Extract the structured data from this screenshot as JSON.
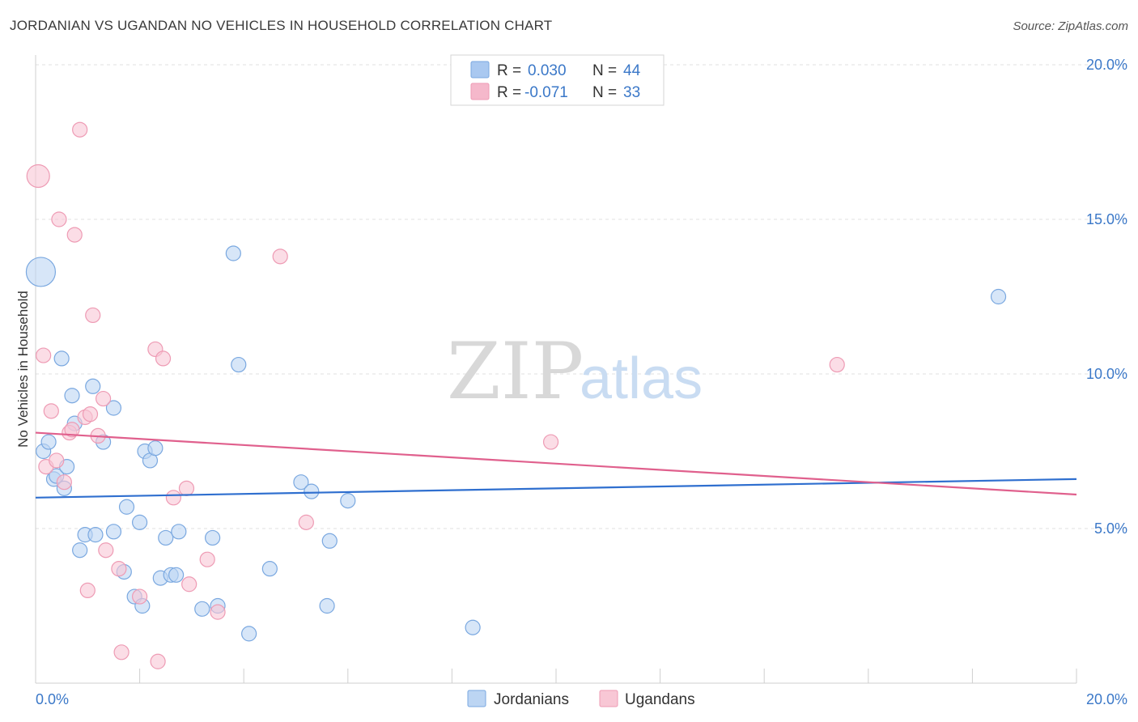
{
  "title": "JORDANIAN VS UGANDAN NO VEHICLES IN HOUSEHOLD CORRELATION CHART",
  "source": "Source: ZipAtlas.com",
  "watermark": {
    "zip": "ZIP",
    "atlas": "atlas"
  },
  "legend": {
    "r_label": "R =",
    "n_label": "N =",
    "rows": [
      {
        "r": "0.030",
        "n": "44",
        "color": "#a9c8f0"
      },
      {
        "r": "-0.071",
        "n": "33",
        "color": "#f5b8cb"
      }
    ]
  },
  "chart_data": {
    "type": "scatter",
    "title": "JORDANIAN VS UGANDAN NO VEHICLES IN HOUSEHOLD CORRELATION CHART",
    "xlabel": "",
    "ylabel": "No Vehicles in Household",
    "xlim": [
      0,
      20
    ],
    "ylim": [
      0,
      20
    ],
    "x_ticks": [
      "0.0%",
      "20.0%"
    ],
    "y_ticks": [
      "5.0%",
      "10.0%",
      "15.0%",
      "20.0%"
    ],
    "y_tick_values": [
      5,
      10,
      15,
      20
    ],
    "grid": "horizontal dashed",
    "legend_position": "top-center and bottom-center",
    "series": [
      {
        "name": "Jordanians",
        "color": "#7aa8e0",
        "fill": "#bcd5f3",
        "line_color": "#2f6fcf",
        "trend": [
          [
            0,
            6.0
          ],
          [
            20,
            6.6
          ]
        ],
        "points": [
          [
            0.1,
            13.3,
            18
          ],
          [
            0.15,
            7.5,
            9
          ],
          [
            0.25,
            7.8,
            9
          ],
          [
            0.35,
            6.6,
            9
          ],
          [
            0.4,
            6.7,
            9
          ],
          [
            0.5,
            10.5,
            9
          ],
          [
            0.55,
            6.3,
            9
          ],
          [
            0.6,
            7.0,
            9
          ],
          [
            0.7,
            9.3,
            9
          ],
          [
            0.75,
            8.4,
            9
          ],
          [
            0.85,
            4.3,
            9
          ],
          [
            0.95,
            4.8,
            9
          ],
          [
            1.1,
            9.6,
            9
          ],
          [
            1.15,
            4.8,
            9
          ],
          [
            1.3,
            7.8,
            9
          ],
          [
            1.5,
            4.9,
            9
          ],
          [
            1.5,
            8.9,
            9
          ],
          [
            1.7,
            3.6,
            9
          ],
          [
            1.75,
            5.7,
            9
          ],
          [
            1.9,
            2.8,
            9
          ],
          [
            2.0,
            5.2,
            9
          ],
          [
            2.05,
            2.5,
            9
          ],
          [
            2.1,
            7.5,
            9
          ],
          [
            2.2,
            7.2,
            9
          ],
          [
            2.3,
            7.6,
            9
          ],
          [
            2.4,
            3.4,
            9
          ],
          [
            2.5,
            4.7,
            9
          ],
          [
            2.6,
            3.5,
            9
          ],
          [
            2.7,
            3.5,
            9
          ],
          [
            2.75,
            4.9,
            9
          ],
          [
            3.2,
            2.4,
            9
          ],
          [
            3.4,
            4.7,
            9
          ],
          [
            3.5,
            2.5,
            9
          ],
          [
            3.8,
            13.9,
            9
          ],
          [
            3.9,
            10.3,
            9
          ],
          [
            4.1,
            1.6,
            9
          ],
          [
            4.5,
            3.7,
            9
          ],
          [
            5.1,
            6.5,
            9
          ],
          [
            5.3,
            6.2,
            9
          ],
          [
            5.6,
            2.5,
            9
          ],
          [
            5.65,
            4.6,
            9
          ],
          [
            6.0,
            5.9,
            9
          ],
          [
            8.4,
            1.8,
            9
          ],
          [
            18.5,
            12.5,
            9
          ]
        ]
      },
      {
        "name": "Ugandans",
        "color": "#ee9bb4",
        "fill": "#f8c7d5",
        "line_color": "#e0608d",
        "trend": [
          [
            0,
            8.1
          ],
          [
            20,
            6.1
          ]
        ],
        "points": [
          [
            0.05,
            16.4,
            14
          ],
          [
            0.15,
            10.6,
            9
          ],
          [
            0.2,
            7.0,
            9
          ],
          [
            0.3,
            8.8,
            9
          ],
          [
            0.4,
            7.2,
            9
          ],
          [
            0.45,
            15.0,
            9
          ],
          [
            0.55,
            6.5,
            9
          ],
          [
            0.65,
            8.1,
            9
          ],
          [
            0.7,
            8.2,
            9
          ],
          [
            0.75,
            14.5,
            9
          ],
          [
            0.85,
            17.9,
            9
          ],
          [
            0.95,
            8.6,
            9
          ],
          [
            1.0,
            3.0,
            9
          ],
          [
            1.05,
            8.7,
            9
          ],
          [
            1.1,
            11.9,
            9
          ],
          [
            1.2,
            8.0,
            9
          ],
          [
            1.3,
            9.2,
            9
          ],
          [
            1.35,
            4.3,
            9
          ],
          [
            1.6,
            3.7,
            9
          ],
          [
            1.65,
            1.0,
            9
          ],
          [
            2.0,
            2.8,
            9
          ],
          [
            2.3,
            10.8,
            9
          ],
          [
            2.35,
            0.7,
            9
          ],
          [
            2.45,
            10.5,
            9
          ],
          [
            2.65,
            6.0,
            9
          ],
          [
            2.9,
            6.3,
            9
          ],
          [
            2.95,
            3.2,
            9
          ],
          [
            3.3,
            4.0,
            9
          ],
          [
            3.5,
            2.3,
            9
          ],
          [
            4.7,
            13.8,
            9
          ],
          [
            5.2,
            5.2,
            9
          ],
          [
            9.9,
            7.8,
            9
          ],
          [
            15.4,
            10.3,
            9
          ]
        ]
      }
    ]
  }
}
